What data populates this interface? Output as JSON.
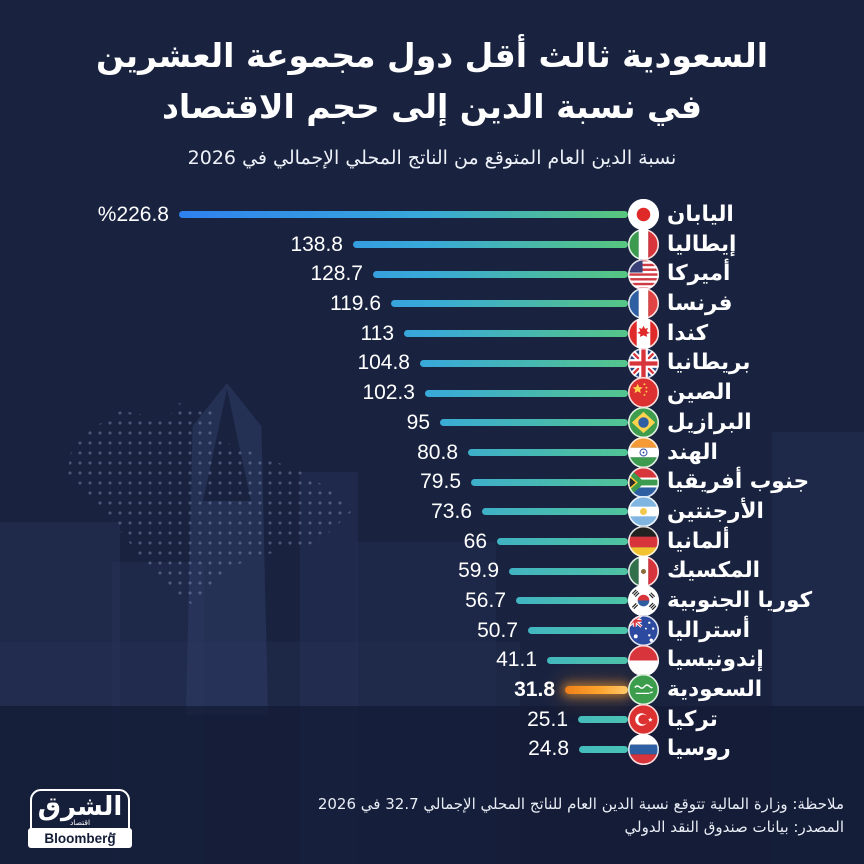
{
  "title": {
    "line1": "السعودية ثالث أقل دول مجموعة العشرين",
    "line2": "في نسبة الدين إلى حجم الاقتصاد"
  },
  "subtitle": "نسبة الدين العام المتوقع من الناتج المحلي الإجمالي في 2026",
  "chart_data": {
    "type": "bar",
    "orientation": "horizontal-rtl",
    "title": "السعودية ثالث أقل دول مجموعة العشرين في نسبة الدين إلى حجم الاقتصاد",
    "subtitle": "نسبة الدين العام المتوقع من الناتج المحلي الإجمالي في 2026",
    "unit": "%",
    "xlim": [
      0,
      226.8
    ],
    "categories": [
      "اليابان",
      "إيطاليا",
      "أميركا",
      "فرنسا",
      "كندا",
      "بريطانيا",
      "الصين",
      "البرازيل",
      "الهند",
      "جنوب أفريقيا",
      "الأرجنتين",
      "ألمانيا",
      "المكسيك",
      "كوريا الجنوبية",
      "أستراليا",
      "إندونيسيا",
      "السعودية",
      "تركيا",
      "روسيا"
    ],
    "values": [
      226.8,
      138.8,
      128.7,
      119.6,
      113,
      104.8,
      102.3,
      95,
      80.8,
      79.5,
      73.6,
      66,
      59.9,
      56.7,
      50.7,
      41.1,
      31.8,
      25.1,
      24.8
    ],
    "value_labels": [
      "%226.8",
      "138.8",
      "128.7",
      "119.6",
      "113",
      "104.8",
      "102.3",
      "95",
      "80.8",
      "79.5",
      "73.6",
      "66",
      "59.9",
      "56.7",
      "50.7",
      "41.1",
      "31.8",
      "25.1",
      "24.8"
    ],
    "flags": [
      "japan",
      "italy",
      "usa",
      "france",
      "canada",
      "uk",
      "china",
      "brazil",
      "india",
      "south-africa",
      "argentina",
      "germany",
      "mexico",
      "south-korea",
      "australia",
      "indonesia",
      "saudi-arabia",
      "turkey",
      "russia"
    ],
    "highlight_index": 16,
    "legend": "none",
    "grid": false
  },
  "colors": {
    "background": "#192340",
    "bar_start": "#2e81f0",
    "bar_mid": "#38a9d9",
    "bar_end_top": "#58c67b",
    "bar_end_bottom": "#49c2b5",
    "highlight_start": "#ef7f1a",
    "highlight_mid": "#ffa42d",
    "highlight_end": "#ffc96a",
    "text": "#ffffff"
  },
  "footer": {
    "note": "ملاحظة: وزارة المالية تتوقع نسبة الدين العام للناتج المحلي الإجمالي 32.7 في 2026",
    "source": "المصدر: بيانات صندوق النقد الدولي",
    "logo": {
      "asharq": "الشرق",
      "economy": "اقتصاد",
      "with": "مع",
      "bloomberg": "Bloomberg"
    }
  }
}
